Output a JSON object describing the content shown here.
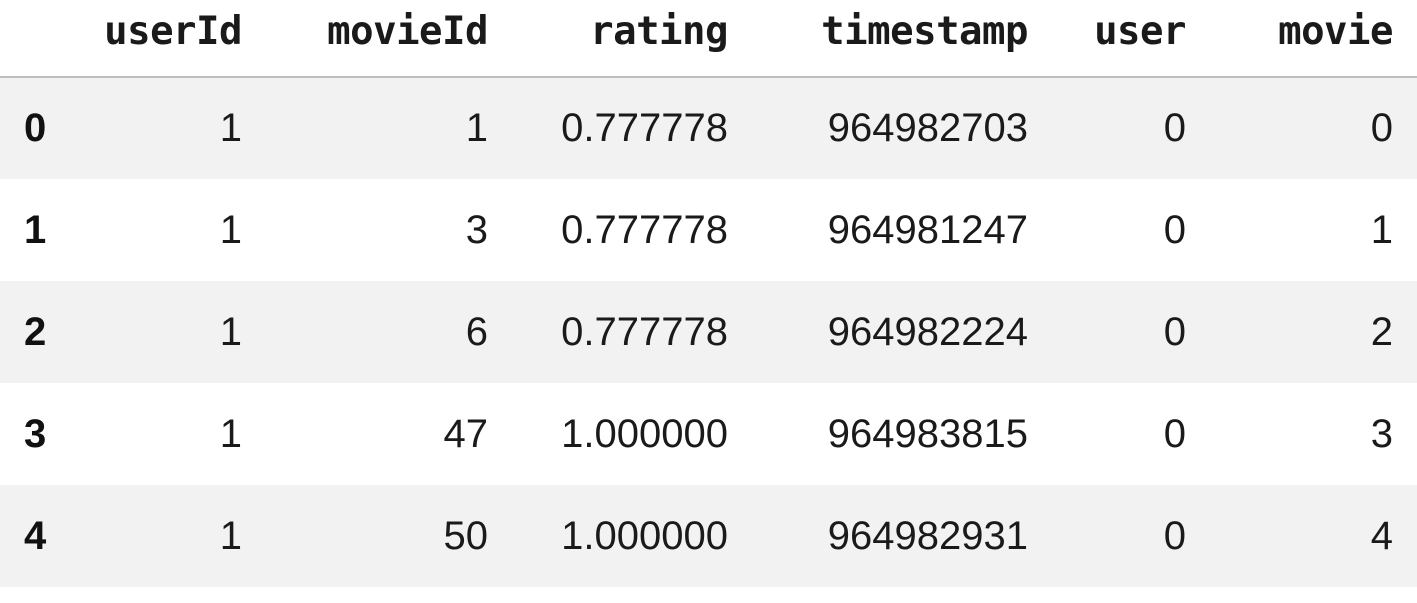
{
  "dataframe": {
    "columns": [
      "userId",
      "movieId",
      "rating",
      "timestamp",
      "user",
      "movie"
    ],
    "rows": [
      {
        "index": "0",
        "cells": [
          "1",
          "1",
          "0.777778",
          "964982703",
          "0",
          "0"
        ]
      },
      {
        "index": "1",
        "cells": [
          "1",
          "3",
          "0.777778",
          "964981247",
          "0",
          "1"
        ]
      },
      {
        "index": "2",
        "cells": [
          "1",
          "6",
          "0.777778",
          "964982224",
          "0",
          "2"
        ]
      },
      {
        "index": "3",
        "cells": [
          "1",
          "47",
          "1.000000",
          "964983815",
          "0",
          "3"
        ]
      },
      {
        "index": "4",
        "cells": [
          "1",
          "50",
          "1.000000",
          "964982931",
          "0",
          "4"
        ]
      }
    ]
  },
  "colors": {
    "row_stripe": "#f2f2f2",
    "header_rule": "#bdbdbd",
    "text": "#1a1a1a"
  }
}
